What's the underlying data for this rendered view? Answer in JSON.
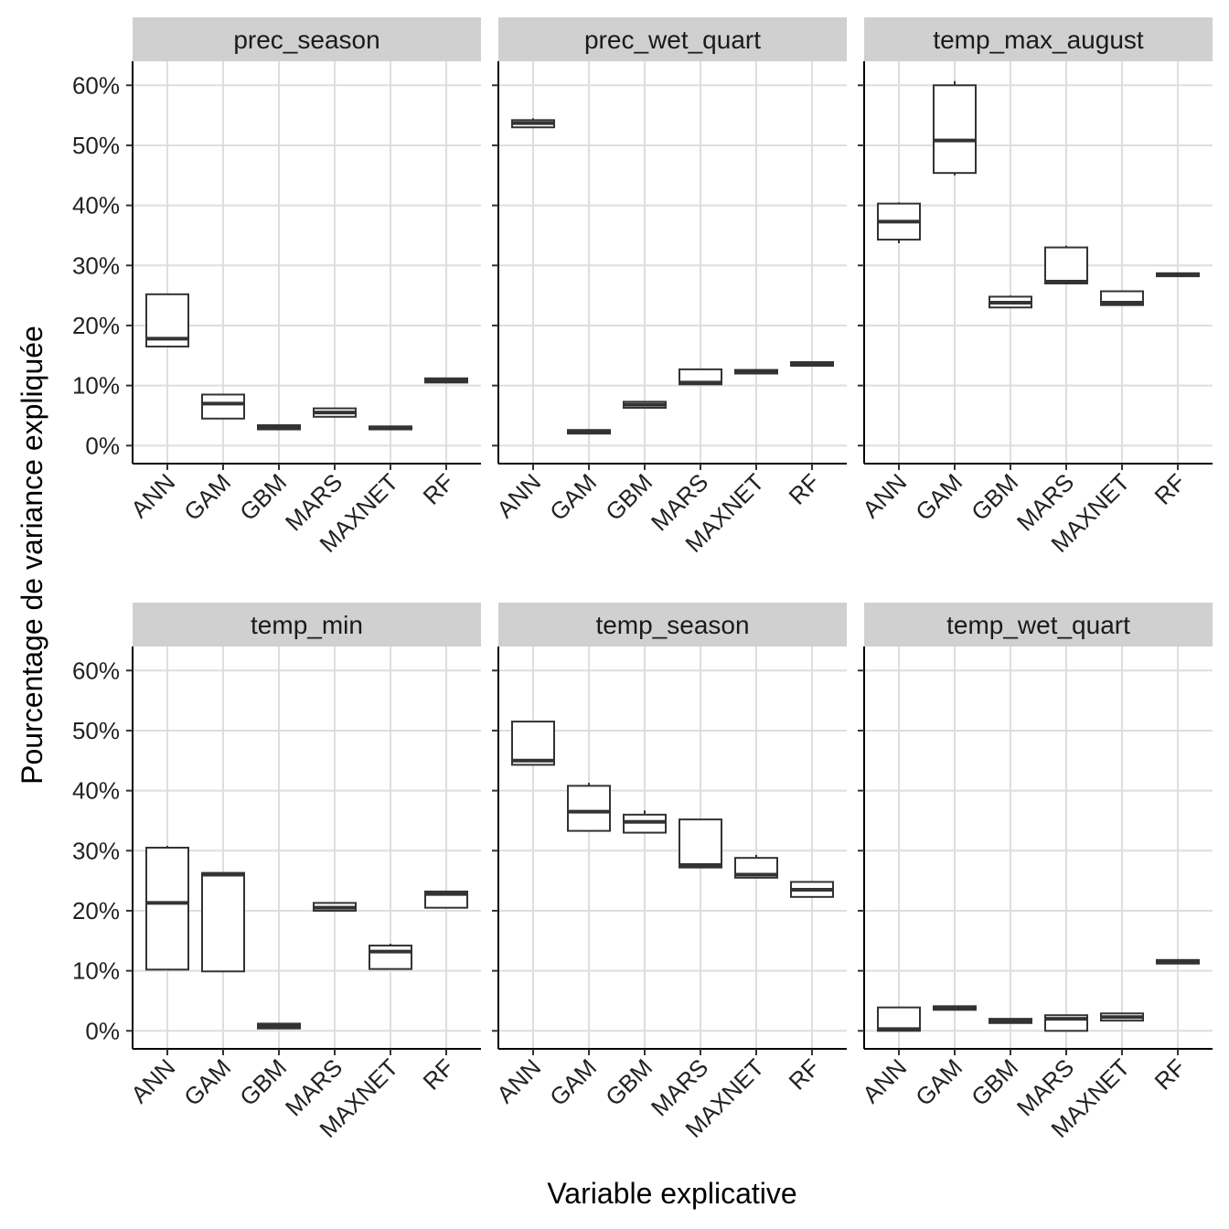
{
  "chart_data": {
    "type": "boxplot",
    "xlabel": "Variable explicative",
    "ylabel": "Pourcentage de variance expliquée",
    "ylim": [
      -3,
      64
    ],
    "yticks": [
      0,
      10,
      20,
      30,
      40,
      50,
      60
    ],
    "ytick_labels": [
      "0%",
      "10%",
      "20%",
      "30%",
      "40%",
      "50%",
      "60%"
    ],
    "categories": [
      "ANN",
      "GAM",
      "GBM",
      "MARS",
      "MAXNET",
      "RF"
    ],
    "grid": true,
    "facets": [
      {
        "title": "prec_season",
        "boxes": [
          {
            "min": 16.5,
            "q1": 16.5,
            "median": 17.8,
            "q3": 25.2,
            "max": 25.2
          },
          {
            "min": 4.5,
            "q1": 4.5,
            "median": 7.0,
            "q3": 8.5,
            "max": 8.5
          },
          {
            "min": 2.7,
            "q1": 2.7,
            "median": 3.1,
            "q3": 3.4,
            "max": 3.4
          },
          {
            "min": 4.8,
            "q1": 4.8,
            "median": 5.5,
            "q3": 6.2,
            "max": 6.2
          },
          {
            "min": 2.7,
            "q1": 2.7,
            "median": 3.0,
            "q3": 3.2,
            "max": 3.2
          },
          {
            "min": 10.5,
            "q1": 10.5,
            "median": 10.9,
            "q3": 11.2,
            "max": 11.2
          }
        ]
      },
      {
        "title": "prec_wet_quart",
        "boxes": [
          {
            "min": 53.0,
            "q1": 53.0,
            "median": 53.7,
            "q3": 54.2,
            "max": 54.5
          },
          {
            "min": 2.0,
            "q1": 2.0,
            "median": 2.3,
            "q3": 2.6,
            "max": 2.6
          },
          {
            "min": 6.3,
            "q1": 6.3,
            "median": 6.8,
            "q3": 7.3,
            "max": 7.3
          },
          {
            "min": 10.2,
            "q1": 10.2,
            "median": 10.5,
            "q3": 12.7,
            "max": 12.7
          },
          {
            "min": 12.0,
            "q1": 12.0,
            "median": 12.3,
            "q3": 12.6,
            "max": 12.6
          },
          {
            "min": 13.3,
            "q1": 13.3,
            "median": 13.6,
            "q3": 13.9,
            "max": 13.9
          }
        ]
      },
      {
        "title": "temp_max_august",
        "boxes": [
          {
            "min": 33.7,
            "q1": 34.3,
            "median": 37.3,
            "q3": 40.3,
            "max": 40.5
          },
          {
            "min": 45.0,
            "q1": 45.4,
            "median": 50.8,
            "q3": 60.0,
            "max": 60.7
          },
          {
            "min": 23.0,
            "q1": 23.0,
            "median": 23.8,
            "q3": 24.8,
            "max": 25.0
          },
          {
            "min": 27.0,
            "q1": 27.0,
            "median": 27.3,
            "q3": 33.0,
            "max": 33.3
          },
          {
            "min": 23.4,
            "q1": 23.4,
            "median": 23.8,
            "q3": 25.7,
            "max": 25.7
          },
          {
            "min": 28.2,
            "q1": 28.2,
            "median": 28.5,
            "q3": 28.7,
            "max": 28.7
          }
        ]
      },
      {
        "title": "temp_min",
        "boxes": [
          {
            "min": 10.2,
            "q1": 10.2,
            "median": 21.3,
            "q3": 30.5,
            "max": 30.8
          },
          {
            "min": 9.9,
            "q1": 9.9,
            "median": 26.0,
            "q3": 26.3,
            "max": 26.3
          },
          {
            "min": 0.4,
            "q1": 0.4,
            "median": 0.8,
            "q3": 1.2,
            "max": 1.2
          },
          {
            "min": 20.0,
            "q1": 20.0,
            "median": 20.5,
            "q3": 21.3,
            "max": 21.3
          },
          {
            "min": 10.3,
            "q1": 10.3,
            "median": 13.2,
            "q3": 14.2,
            "max": 14.5
          },
          {
            "min": 20.5,
            "q1": 20.5,
            "median": 22.8,
            "q3": 23.2,
            "max": 23.2
          }
        ]
      },
      {
        "title": "temp_season",
        "boxes": [
          {
            "min": 44.2,
            "q1": 44.3,
            "median": 45.0,
            "q3": 51.5,
            "max": 51.5
          },
          {
            "min": 33.3,
            "q1": 33.3,
            "median": 36.5,
            "q3": 40.8,
            "max": 41.3
          },
          {
            "min": 33.0,
            "q1": 33.0,
            "median": 34.8,
            "q3": 36.0,
            "max": 36.7
          },
          {
            "min": 27.2,
            "q1": 27.2,
            "median": 27.6,
            "q3": 35.2,
            "max": 35.2
          },
          {
            "min": 25.5,
            "q1": 25.5,
            "median": 26.0,
            "q3": 28.8,
            "max": 29.3
          },
          {
            "min": 22.3,
            "q1": 22.3,
            "median": 23.5,
            "q3": 24.8,
            "max": 24.8
          }
        ]
      },
      {
        "title": "temp_wet_quart",
        "boxes": [
          {
            "min": 0.0,
            "q1": 0.0,
            "median": 0.3,
            "q3": 3.9,
            "max": 3.9
          },
          {
            "min": 3.5,
            "q1": 3.5,
            "median": 3.8,
            "q3": 4.1,
            "max": 4.1
          },
          {
            "min": 1.3,
            "q1": 1.3,
            "median": 1.7,
            "q3": 2.0,
            "max": 2.0
          },
          {
            "min": 0.0,
            "q1": 0.0,
            "median": 2.0,
            "q3": 2.6,
            "max": 2.6
          },
          {
            "min": 1.7,
            "q1": 1.7,
            "median": 2.3,
            "q3": 2.9,
            "max": 2.9
          },
          {
            "min": 11.2,
            "q1": 11.2,
            "median": 11.5,
            "q3": 11.8,
            "max": 11.8
          }
        ]
      }
    ]
  }
}
